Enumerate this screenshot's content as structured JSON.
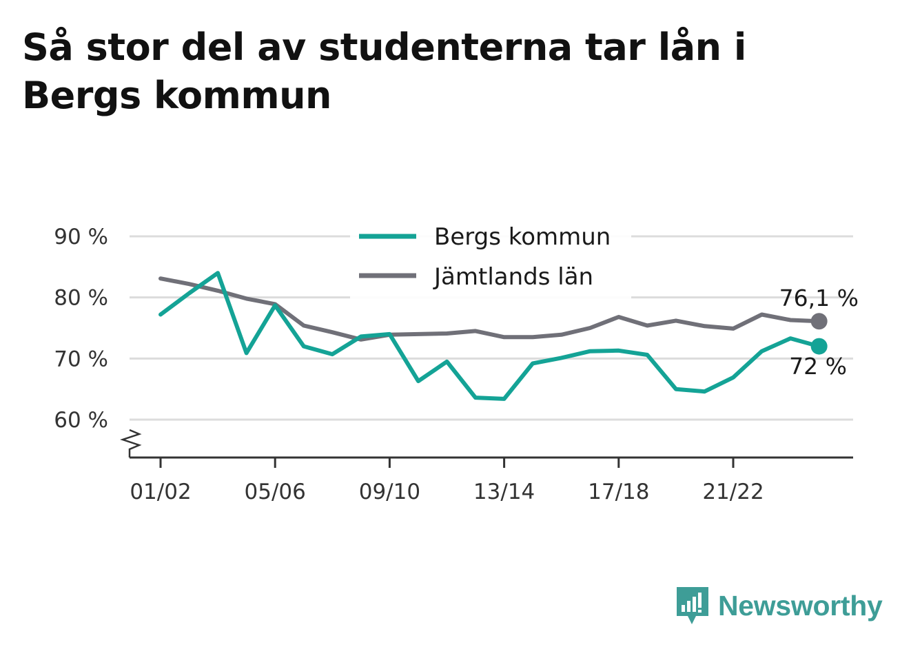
{
  "title": "Så stor del av studenterna tar lån i Bergs kommun",
  "brand": {
    "name": "Newsworthy",
    "icon": "newsworthy-logo-icon",
    "color": "#3e9d97"
  },
  "chart_data": {
    "type": "line",
    "title": "Så stor del av studenterna tar lån i Bergs kommun",
    "x": [
      "01/02",
      "02/03",
      "03/04",
      "04/05",
      "05/06",
      "06/07",
      "07/08",
      "08/09",
      "09/10",
      "10/11",
      "11/12",
      "12/13",
      "13/14",
      "14/15",
      "15/16",
      "16/17",
      "17/18",
      "18/19",
      "19/20",
      "20/21",
      "21/22",
      "22/23",
      "23/24",
      "24/25"
    ],
    "x_tick_labels": [
      "01/02",
      "05/06",
      "09/10",
      "13/14",
      "17/18",
      "21/22"
    ],
    "y_tick_labels": [
      "90 %",
      "80 %",
      "70 %",
      "60 %"
    ],
    "y_ticks": [
      90,
      80,
      70,
      60
    ],
    "ylim": [
      54,
      90
    ],
    "y_axis_break": true,
    "grid": true,
    "legend_position": "top-center",
    "series": [
      {
        "name": "Bergs kommun",
        "color": "#14a396",
        "values": [
          77.2,
          80.7,
          84.0,
          70.9,
          78.7,
          72.0,
          70.7,
          73.6,
          74.0,
          66.3,
          69.5,
          63.6,
          63.4,
          69.2,
          70.1,
          71.2,
          71.3,
          70.6,
          65.0,
          64.6,
          66.9,
          71.2,
          73.3,
          72.0
        ],
        "end_label": "72 %"
      },
      {
        "name": "Jämtlands län",
        "color": "#707078",
        "values": [
          83.1,
          82.2,
          81.1,
          79.8,
          78.9,
          75.4,
          74.3,
          73.1,
          73.9,
          74.0,
          74.1,
          74.5,
          73.5,
          73.5,
          73.9,
          75.0,
          76.8,
          75.4,
          76.2,
          75.3,
          74.9,
          77.2,
          76.3,
          76.1
        ],
        "end_label": "76,1 %"
      }
    ]
  }
}
